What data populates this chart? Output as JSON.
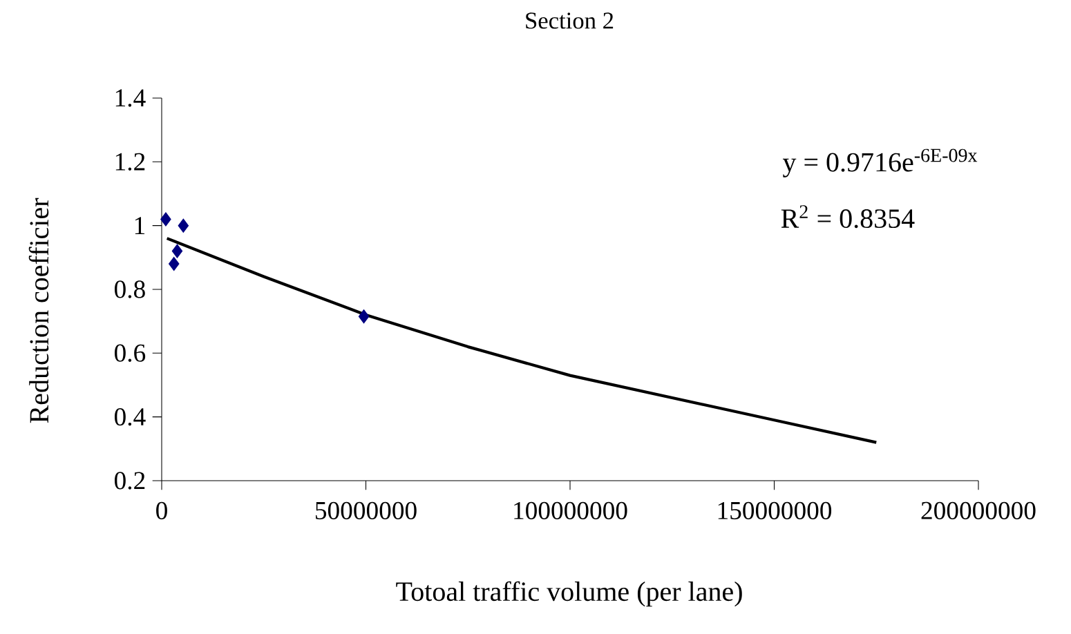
{
  "chart_data": {
    "type": "scatter",
    "title": "Section 2",
    "xlabel": "Totoal traffic volume (per lane)",
    "ylabel": "Reduction coefficier",
    "annotations": [
      "y = 0.9716e$^{-6E-09x}$",
      "R$^{2}$ = 0.8354"
    ],
    "series": [
      {
        "color": "#000080",
        "marker": "diamond",
        "x": [
          1000000,
          5300000,
          3800000,
          3000000,
          49500000
        ],
        "values": [
          1.02,
          1.0,
          0.92,
          0.88,
          0.715
        ]
      },
      {
        "type": "line",
        "color": "#000000",
        "x": [
          1300000,
          25000000,
          50000000,
          75000000,
          100000000,
          125000000,
          150000000,
          175000000
        ],
        "values": [
          0.96,
          0.84,
          0.72,
          0.62,
          0.53,
          0.46,
          0.39,
          0.32
        ]
      }
    ],
    "xlim": [
      0,
      200000000
    ],
    "xticks": [
      0,
      50000000,
      100000000,
      150000000,
      200000000
    ],
    "ylim": [
      0.2,
      1.4
    ],
    "yticks": [
      0.2,
      0.4,
      0.6,
      0.8,
      1,
      1.2,
      1.4
    ],
    "grid": false
  }
}
